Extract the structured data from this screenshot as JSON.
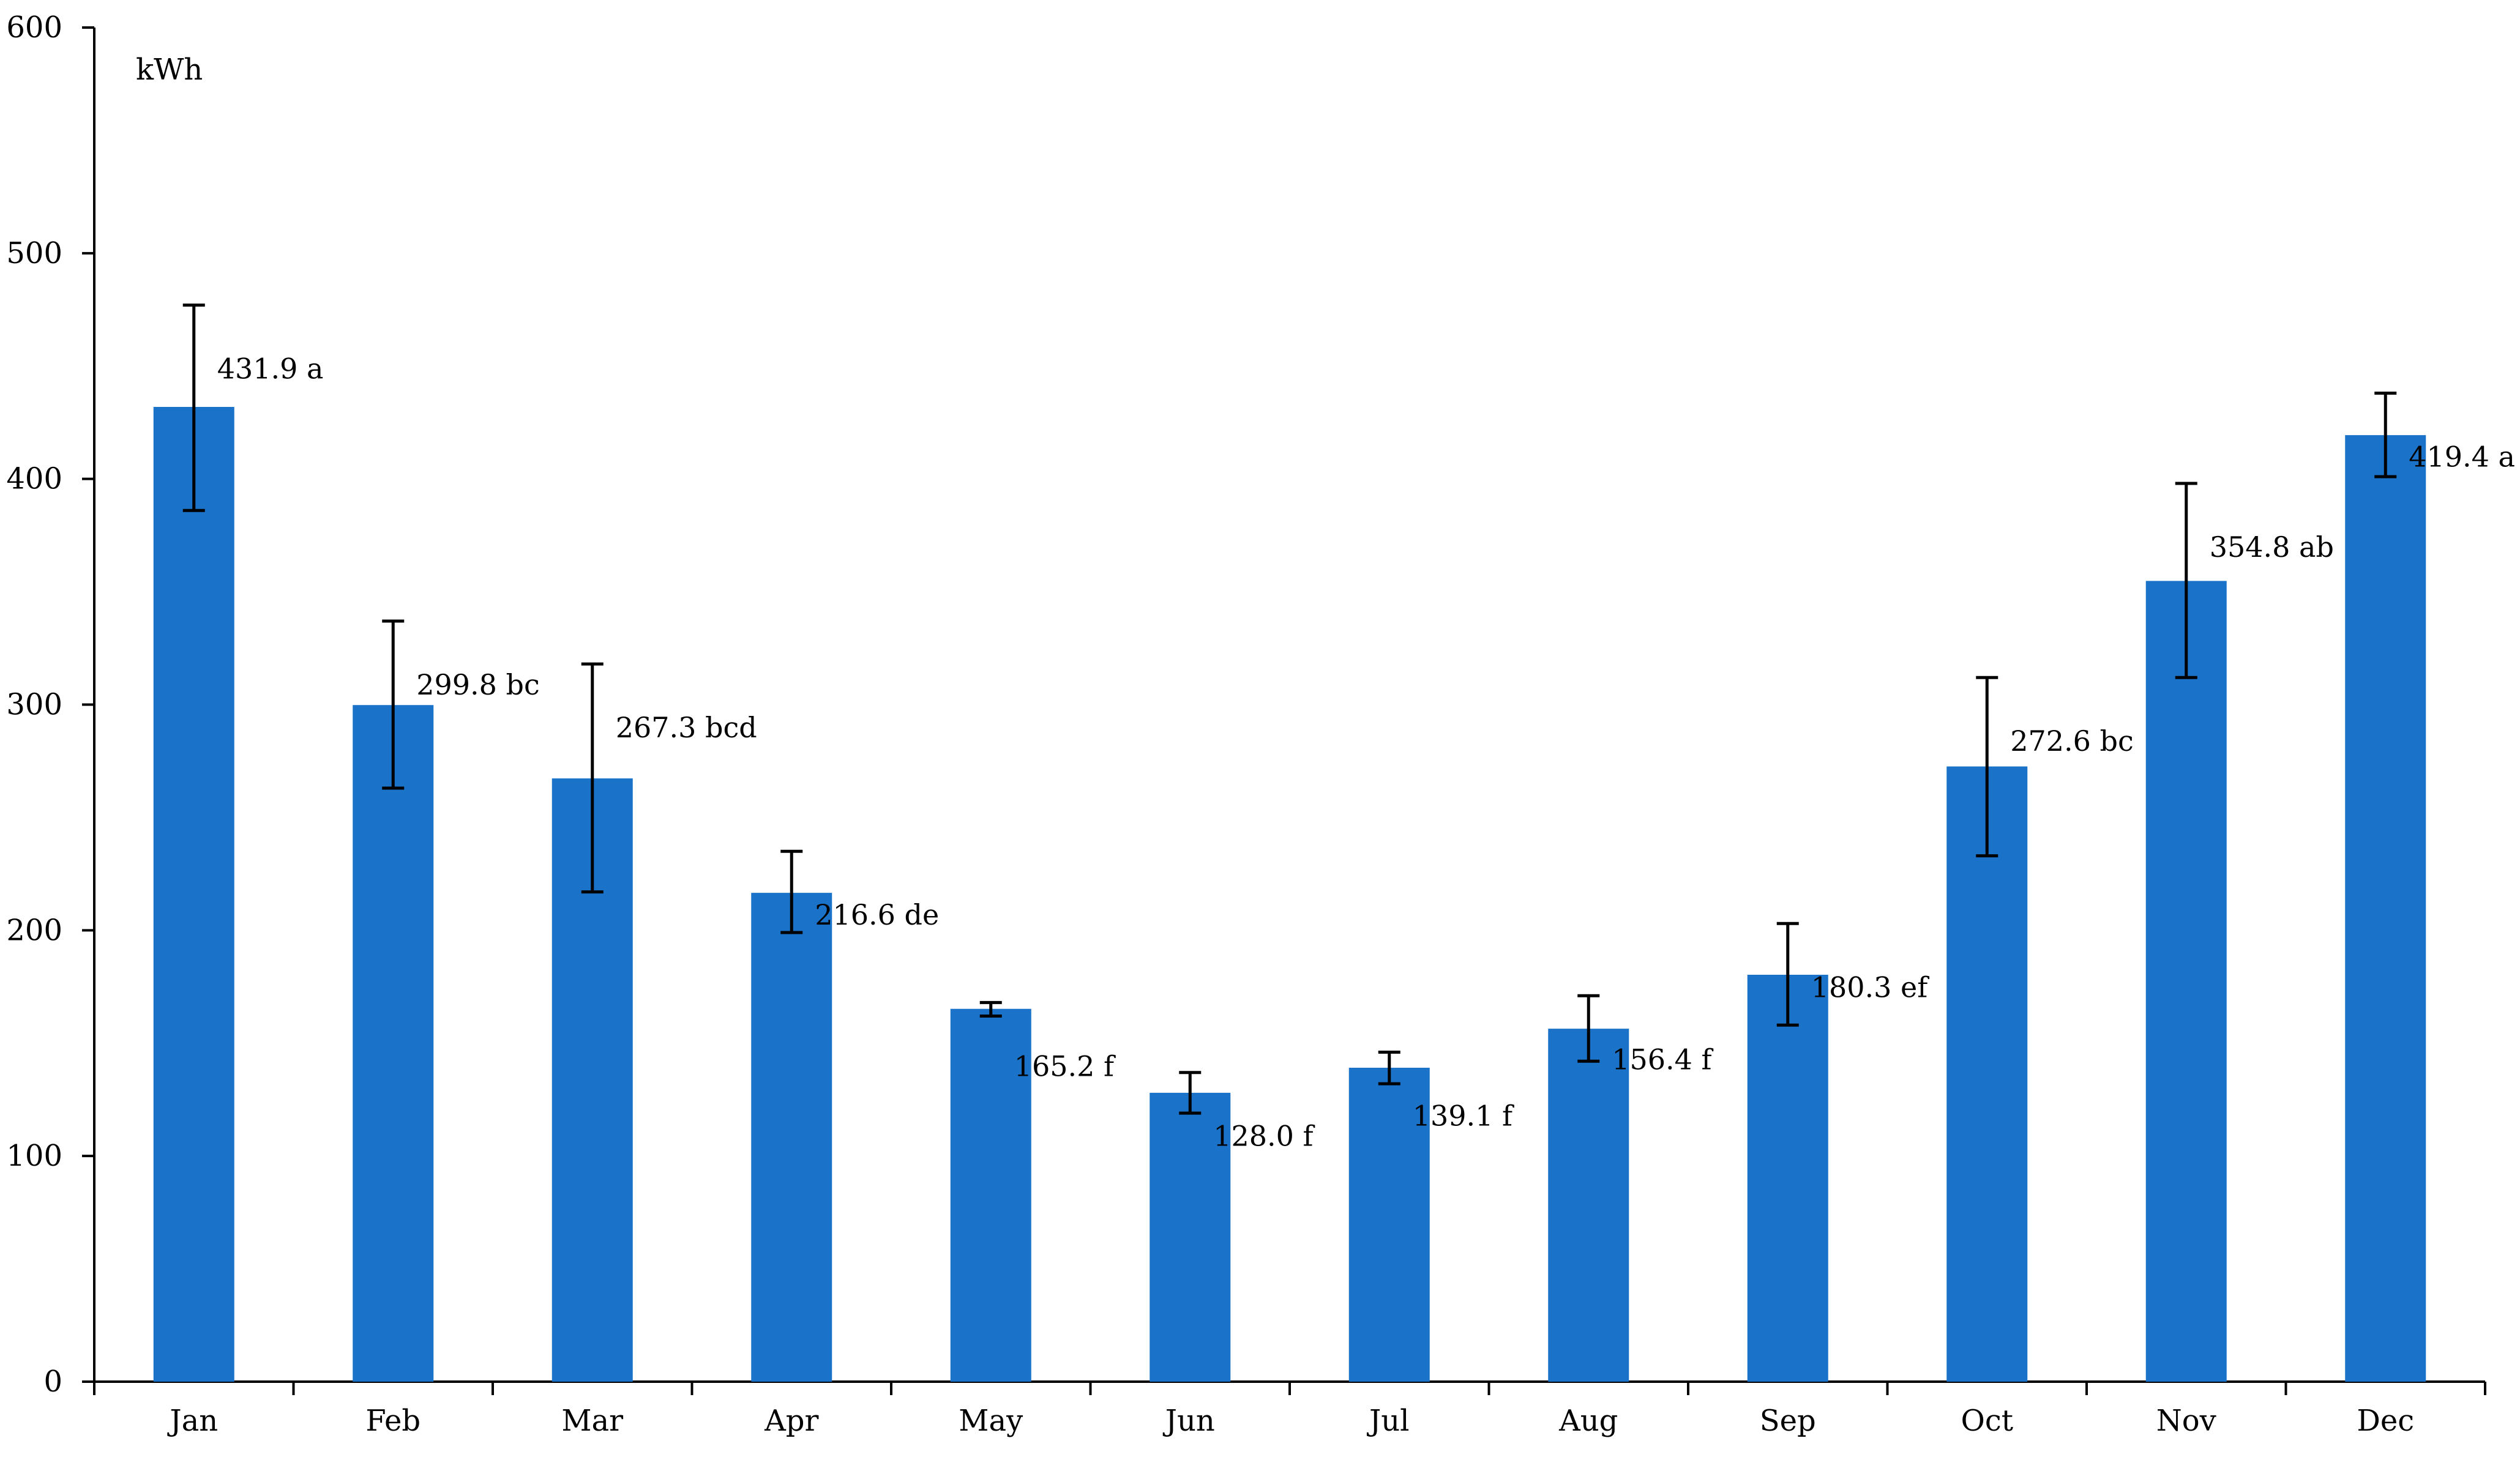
{
  "chart_data": {
    "type": "bar",
    "ylabel": "kWh",
    "ylim": [
      0,
      600
    ],
    "yticks": [
      0,
      100,
      200,
      300,
      400,
      500,
      600
    ],
    "grid": false,
    "categories": [
      "Jan",
      "Feb",
      "Mar",
      "Apr",
      "May",
      "Jun",
      "Jul",
      "Aug",
      "Sep",
      "Oct",
      "Nov",
      "Dec"
    ],
    "values": [
      431.9,
      299.8,
      267.3,
      216.6,
      165.2,
      128.0,
      139.1,
      156.4,
      180.3,
      272.6,
      354.8,
      419.4
    ],
    "error_low": [
      386,
      263,
      217,
      199,
      162,
      119,
      132,
      142,
      158,
      233,
      312,
      401
    ],
    "error_high": [
      477,
      337,
      318,
      235,
      168,
      137,
      146,
      171,
      203,
      312,
      398,
      438
    ],
    "data_labels": [
      "431.9 a",
      "299.8 bc",
      "267.3 bcd",
      "216.6 de",
      "165.2 f",
      "128.0 f",
      "139.1 f",
      "156.4 f",
      "180.3 ef",
      "272.6 bc",
      "354.8 ab",
      "419.4 a"
    ],
    "bar_color": "#1a73c8"
  }
}
